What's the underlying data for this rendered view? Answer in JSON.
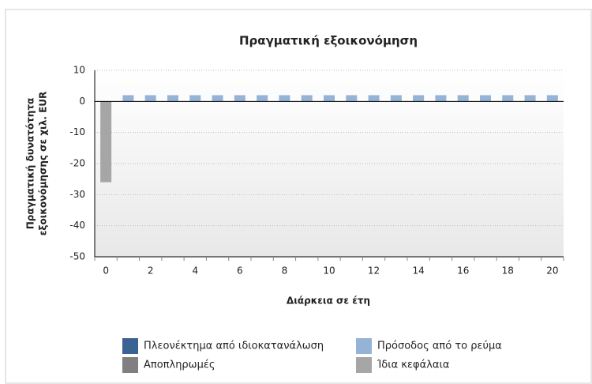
{
  "chart_data": {
    "type": "stacked_bar",
    "title": "Πραγματική εξοικονόμηση",
    "x_label": "Διάρκεια σε έτη",
    "y_label": [
      "Πραγματική δυνατότητα",
      "εξοικονόμησης σε χιλ. EUR"
    ],
    "categories": [
      0,
      null,
      2,
      null,
      4,
      null,
      6,
      null,
      8,
      null,
      10,
      null,
      12,
      null,
      14,
      null,
      16,
      null,
      18,
      null,
      20
    ],
    "series": [
      {
        "name": "Πλεονέκτημα από ιδιοκατανάλωση",
        "color": "#3a6293",
        "values": [
          0,
          0,
          0,
          0,
          0,
          0,
          0,
          0,
          0,
          0,
          0,
          0,
          0,
          0,
          0,
          0,
          0,
          0,
          0,
          0,
          0
        ]
      },
      {
        "name": "Πρόσοδος από το ρεύμα",
        "color": "#95b3d7",
        "values": [
          0,
          2,
          2,
          2,
          2,
          2,
          2,
          2,
          2,
          2,
          2,
          2,
          2,
          2,
          2,
          2,
          2,
          2,
          2,
          2,
          2
        ]
      },
      {
        "name": "Αποπληρωμές",
        "color": "#808080",
        "values": [
          0,
          0,
          0,
          0,
          0,
          0,
          0,
          0,
          0,
          0,
          0,
          0,
          0,
          0,
          0,
          0,
          0,
          0,
          0,
          0,
          0
        ]
      },
      {
        "name": "Ίδια κεφάλαια",
        "color": "#a6a6a6",
        "values": [
          -26,
          0,
          0,
          0,
          0,
          0,
          0,
          0,
          0,
          0,
          0,
          0,
          0,
          0,
          0,
          0,
          0,
          0,
          0,
          0,
          0
        ]
      }
    ],
    "ylim": [
      -50,
      10
    ],
    "yticks": [
      10,
      0,
      -10,
      -20,
      -30,
      -40,
      -50
    ],
    "grid": true
  }
}
